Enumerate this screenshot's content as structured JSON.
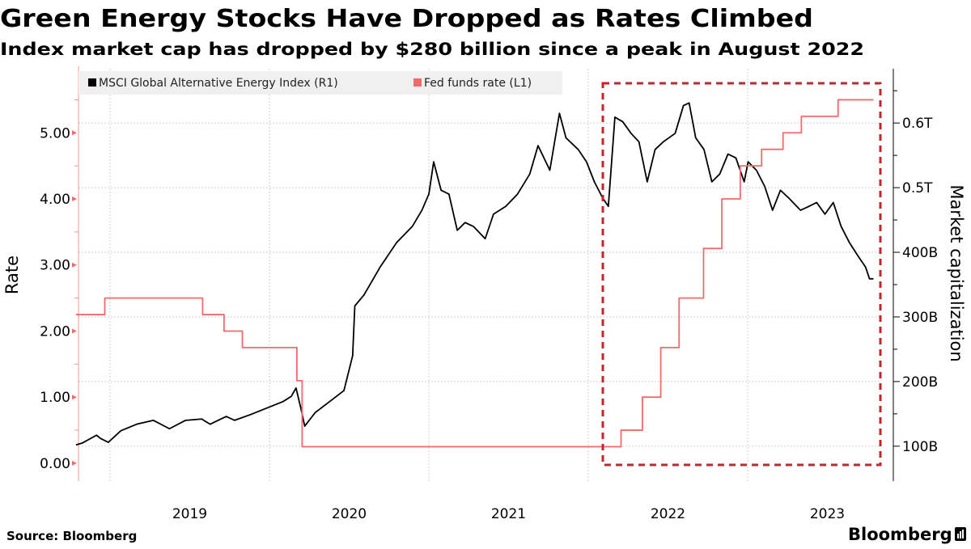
{
  "chart_data": {
    "type": "line",
    "title": "Green Energy Stocks Have Dropped as Rates Climbed",
    "subtitle": "Index market cap has dropped by $280 billion since a peak in August 2022",
    "source": "Source: Bloomberg",
    "brand": "Bloomberg",
    "y_left": {
      "label": "Rate",
      "ylim": [
        -0.27,
        5.97
      ],
      "ticks": [
        0,
        1,
        2,
        3,
        4,
        5
      ],
      "tick_labels": [
        "0.00",
        "1.00",
        "2.00",
        "3.00",
        "4.00",
        "5.00"
      ]
    },
    "y_right": {
      "label": "Market capitalization",
      "ylim": [
        46,
        684
      ],
      "ticks": [
        100,
        200,
        300,
        400,
        500,
        600
      ],
      "tick_labels": [
        "100B",
        "200B",
        "300B",
        "400B",
        "0.5T",
        "0.6T"
      ],
      "unit": "billion USD"
    },
    "x": {
      "tick_labels": [
        "2019",
        "2020",
        "2021",
        "2022",
        "2023"
      ],
      "range": [
        "2018-10-15",
        "2023-10-16"
      ]
    },
    "grid": true,
    "legend_position": "top-left",
    "annotation": {
      "type": "dashed-box",
      "color": "#c0272d",
      "range": [
        "2022-02-05",
        "2023-11-15"
      ]
    },
    "series": [
      {
        "name": "MSCI Global Alternative Energy Index (R1)",
        "axis": "right",
        "color": "#000000",
        "points": [
          [
            "2018-10-15",
            102
          ],
          [
            "2018-10-30",
            105
          ],
          [
            "2018-12-01",
            117
          ],
          [
            "2018-12-10",
            112
          ],
          [
            "2018-12-28",
            106
          ],
          [
            "2019-01-26",
            124
          ],
          [
            "2019-03-03",
            134
          ],
          [
            "2019-04-10",
            140
          ],
          [
            "2019-05-17",
            127
          ],
          [
            "2019-06-23",
            140
          ],
          [
            "2019-07-30",
            142
          ],
          [
            "2019-08-18",
            134
          ],
          [
            "2019-09-24",
            146
          ],
          [
            "2019-10-13",
            140
          ],
          [
            "2019-11-19",
            149
          ],
          [
            "2019-12-26",
            159
          ],
          [
            "2020-02-01",
            169
          ],
          [
            "2020-02-20",
            177
          ],
          [
            "2020-03-02",
            190
          ],
          [
            "2020-03-13",
            159
          ],
          [
            "2020-03-22",
            131
          ],
          [
            "2020-04-15",
            152
          ],
          [
            "2020-05-22",
            171
          ],
          [
            "2020-06-20",
            186
          ],
          [
            "2020-07-10",
            240
          ],
          [
            "2020-07-15",
            317
          ],
          [
            "2020-08-05",
            334
          ],
          [
            "2020-09-11",
            377
          ],
          [
            "2020-10-19",
            415
          ],
          [
            "2020-11-24",
            440
          ],
          [
            "2020-12-16",
            465
          ],
          [
            "2021-01-01",
            490
          ],
          [
            "2021-01-12",
            540
          ],
          [
            "2021-01-29",
            496
          ],
          [
            "2021-02-16",
            490
          ],
          [
            "2021-03-07",
            434
          ],
          [
            "2021-03-25",
            446
          ],
          [
            "2021-04-13",
            440
          ],
          [
            "2021-05-10",
            421
          ],
          [
            "2021-05-29",
            459
          ],
          [
            "2021-06-26",
            471
          ],
          [
            "2021-07-23",
            490
          ],
          [
            "2021-08-20",
            521
          ],
          [
            "2021-09-08",
            565
          ],
          [
            "2021-10-05",
            527
          ],
          [
            "2021-10-27",
            615
          ],
          [
            "2021-11-11",
            577
          ],
          [
            "2021-12-09",
            559
          ],
          [
            "2021-12-28",
            540
          ],
          [
            "2022-01-15",
            509
          ],
          [
            "2022-02-03",
            484
          ],
          [
            "2022-02-16",
            471
          ],
          [
            "2022-03-03",
            609
          ],
          [
            "2022-03-21",
            602
          ],
          [
            "2022-04-09",
            584
          ],
          [
            "2022-04-27",
            571
          ],
          [
            "2022-05-16",
            509
          ],
          [
            "2022-06-03",
            559
          ],
          [
            "2022-06-22",
            571
          ],
          [
            "2022-07-19",
            584
          ],
          [
            "2022-08-07",
            627
          ],
          [
            "2022-08-20",
            631
          ],
          [
            "2022-09-04",
            577
          ],
          [
            "2022-09-23",
            559
          ],
          [
            "2022-10-11",
            509
          ],
          [
            "2022-10-29",
            521
          ],
          [
            "2022-11-17",
            552
          ],
          [
            "2022-12-05",
            546
          ],
          [
            "2022-12-24",
            509
          ],
          [
            "2023-01-02",
            540
          ],
          [
            "2023-01-21",
            527
          ],
          [
            "2023-02-09",
            502
          ],
          [
            "2023-02-27",
            465
          ],
          [
            "2023-03-17",
            496
          ],
          [
            "2023-04-05",
            484
          ],
          [
            "2023-05-02",
            465
          ],
          [
            "2023-05-21",
            471
          ],
          [
            "2023-06-08",
            477
          ],
          [
            "2023-06-27",
            459
          ],
          [
            "2023-07-16",
            477
          ],
          [
            "2023-08-03",
            440
          ],
          [
            "2023-08-22",
            415
          ],
          [
            "2023-09-09",
            396
          ],
          [
            "2023-09-28",
            377
          ],
          [
            "2023-10-07",
            359
          ],
          [
            "2023-10-16",
            359
          ]
        ]
      },
      {
        "name": "Fed funds rate (L1)",
        "axis": "left",
        "color": "#f06b6b",
        "step": true,
        "points": [
          [
            "2018-10-15",
            2.25
          ],
          [
            "2018-12-20",
            2.5
          ],
          [
            "2019-08-01",
            2.25
          ],
          [
            "2019-09-19",
            2.0
          ],
          [
            "2019-10-31",
            1.75
          ],
          [
            "2020-03-04",
            1.25
          ],
          [
            "2020-03-16",
            0.25
          ],
          [
            "2022-03-17",
            0.5
          ],
          [
            "2022-05-05",
            1.0
          ],
          [
            "2022-06-16",
            1.75
          ],
          [
            "2022-07-28",
            2.5
          ],
          [
            "2022-09-22",
            3.25
          ],
          [
            "2022-11-03",
            4.0
          ],
          [
            "2022-12-15",
            4.5
          ],
          [
            "2023-02-02",
            4.75
          ],
          [
            "2023-03-23",
            5.0
          ],
          [
            "2023-05-04",
            5.25
          ],
          [
            "2023-07-27",
            5.5
          ],
          [
            "2023-10-16",
            5.5
          ]
        ]
      }
    ]
  }
}
